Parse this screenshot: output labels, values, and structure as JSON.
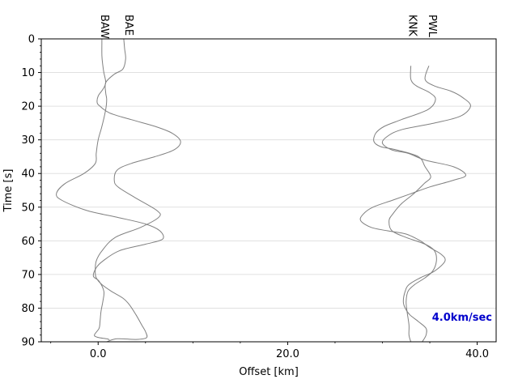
{
  "chart_data": {
    "type": "line",
    "title": "",
    "xlabel": "Offset [km]",
    "ylabel": "Time [s]",
    "xlim": [
      -6,
      42
    ],
    "ylim": [
      90,
      0
    ],
    "y_axis_inverted": true,
    "x_ticks": [
      0,
      20,
      40
    ],
    "x_tick_labels": [
      "0.0",
      "20.0",
      "40.0"
    ],
    "y_ticks": [
      0,
      10,
      20,
      30,
      40,
      50,
      60,
      70,
      80,
      90
    ],
    "y_tick_labels": [
      "0",
      "10",
      "20",
      "30",
      "40",
      "50",
      "60",
      "70",
      "80",
      "90"
    ],
    "grid": "horizontal",
    "line_color": "#808080",
    "annotation": {
      "text": "4.0km/sec",
      "color": "#0000cc",
      "placement": "lower-right"
    },
    "series": [
      {
        "name": "BAW",
        "label_offset": 0.3,
        "points": [
          [
            0.4,
            0
          ],
          [
            0.4,
            5
          ],
          [
            0.5,
            8
          ],
          [
            0.6,
            10
          ],
          [
            0.8,
            13
          ],
          [
            0.5,
            15
          ],
          [
            0.0,
            17
          ],
          [
            -0.1,
            19
          ],
          [
            0.2,
            20
          ],
          [
            1.2,
            22
          ],
          [
            3.5,
            24
          ],
          [
            6.0,
            26
          ],
          [
            7.8,
            28
          ],
          [
            8.7,
            30.5
          ],
          [
            8.0,
            33
          ],
          [
            6.0,
            35
          ],
          [
            3.5,
            37
          ],
          [
            2.0,
            39
          ],
          [
            1.7,
            42
          ],
          [
            2.1,
            44
          ],
          [
            3.8,
            47
          ],
          [
            6.2,
            51
          ],
          [
            6.4,
            53
          ],
          [
            4.5,
            56
          ],
          [
            1.8,
            59
          ],
          [
            0.4,
            63
          ],
          [
            -0.2,
            66
          ],
          [
            -0.3,
            69
          ],
          [
            -0.2,
            71
          ],
          [
            0.4,
            73
          ],
          [
            1.4,
            75
          ],
          [
            2.6,
            77
          ],
          [
            3.3,
            79
          ],
          [
            4.0,
            82
          ],
          [
            4.6,
            85
          ],
          [
            5.0,
            87
          ],
          [
            5.1,
            88.8
          ],
          [
            4.0,
            89.3
          ],
          [
            2.0,
            89.1
          ],
          [
            0.9,
            90
          ]
        ]
      },
      {
        "name": "BAE",
        "label_offset": 2.9,
        "points": [
          [
            2.7,
            0
          ],
          [
            2.8,
            3
          ],
          [
            2.9,
            6
          ],
          [
            2.6,
            9
          ],
          [
            1.7,
            10.5
          ],
          [
            0.8,
            13
          ],
          [
            0.8,
            16
          ],
          [
            0.9,
            18
          ],
          [
            0.8,
            21
          ],
          [
            0.4,
            26
          ],
          [
            0.0,
            30
          ],
          [
            -0.2,
            34
          ],
          [
            -0.3,
            37
          ],
          [
            -1.5,
            40
          ],
          [
            -3.5,
            43
          ],
          [
            -4.4,
            46
          ],
          [
            -3.8,
            48
          ],
          [
            -1.2,
            51
          ],
          [
            2.0,
            53
          ],
          [
            5.0,
            55
          ],
          [
            6.5,
            57
          ],
          [
            6.8,
            59.5
          ],
          [
            5.0,
            61
          ],
          [
            2.2,
            63
          ],
          [
            0.5,
            66
          ],
          [
            -0.2,
            68
          ],
          [
            -0.5,
            70.5
          ],
          [
            0.1,
            72
          ],
          [
            0.6,
            75
          ],
          [
            0.5,
            78
          ],
          [
            0.3,
            81
          ],
          [
            0.2,
            84
          ],
          [
            0.1,
            86
          ],
          [
            -0.4,
            88
          ],
          [
            0.0,
            88.7
          ],
          [
            0.9,
            89.1
          ],
          [
            1.2,
            89.4
          ]
        ]
      },
      {
        "name": "KNK",
        "label_offset": 32.8,
        "points": [
          [
            33.0,
            8
          ],
          [
            33.0,
            12
          ],
          [
            33.6,
            14
          ],
          [
            35.0,
            16
          ],
          [
            35.6,
            18
          ],
          [
            34.8,
            21
          ],
          [
            32.0,
            24
          ],
          [
            30.2,
            26
          ],
          [
            29.3,
            28
          ],
          [
            29.1,
            30.5
          ],
          [
            29.8,
            32
          ],
          [
            31.5,
            33
          ],
          [
            33.8,
            35
          ],
          [
            34.5,
            38
          ],
          [
            35.1,
            41
          ],
          [
            34.4,
            43
          ],
          [
            33.3,
            46
          ],
          [
            32.0,
            49
          ],
          [
            31.1,
            52
          ],
          [
            30.7,
            54
          ],
          [
            31.0,
            57
          ],
          [
            32.5,
            59
          ],
          [
            34.5,
            61
          ],
          [
            35.5,
            63
          ],
          [
            35.7,
            66
          ],
          [
            35.3,
            69
          ],
          [
            34.5,
            71
          ],
          [
            33.4,
            73
          ],
          [
            32.7,
            75
          ],
          [
            32.5,
            78
          ],
          [
            32.6,
            81
          ],
          [
            32.8,
            85
          ],
          [
            32.8,
            88
          ],
          [
            33.0,
            90
          ]
        ]
      },
      {
        "name": "PWL",
        "label_offset": 34.9,
        "points": [
          [
            34.9,
            8
          ],
          [
            34.5,
            12
          ],
          [
            35.5,
            14
          ],
          [
            37.2,
            15.5
          ],
          [
            38.5,
            17.5
          ],
          [
            39.3,
            20
          ],
          [
            38.2,
            23
          ],
          [
            35.5,
            25
          ],
          [
            32.0,
            27
          ],
          [
            30.5,
            29
          ],
          [
            30.0,
            31
          ],
          [
            31.0,
            33
          ],
          [
            32.7,
            34
          ],
          [
            34.5,
            36
          ],
          [
            37.5,
            38
          ],
          [
            38.8,
            40.5
          ],
          [
            37.5,
            42
          ],
          [
            35.0,
            44
          ],
          [
            33.0,
            46
          ],
          [
            31.0,
            48
          ],
          [
            29.0,
            50
          ],
          [
            28.0,
            52
          ],
          [
            27.7,
            54
          ],
          [
            28.8,
            56
          ],
          [
            30.5,
            57
          ],
          [
            32.5,
            58
          ],
          [
            34.0,
            60
          ],
          [
            35.0,
            62
          ],
          [
            36.2,
            64
          ],
          [
            36.6,
            66
          ],
          [
            35.5,
            69
          ],
          [
            34.0,
            71
          ],
          [
            32.8,
            73
          ],
          [
            32.4,
            75
          ],
          [
            32.2,
            78
          ],
          [
            32.4,
            80
          ],
          [
            32.9,
            82
          ],
          [
            33.8,
            84
          ],
          [
            34.6,
            86
          ],
          [
            34.6,
            88
          ],
          [
            34.2,
            90
          ]
        ]
      }
    ]
  }
}
